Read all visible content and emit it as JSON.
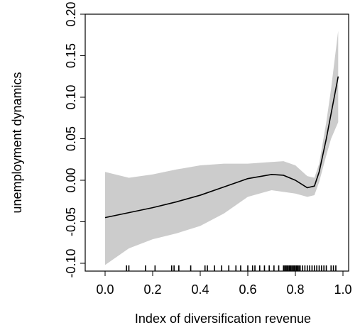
{
  "chart_data": {
    "type": "line",
    "title": "",
    "xlabel": "Index of diversification revenue",
    "ylabel": "unemployment dynamics",
    "xlim": [
      0.0,
      1.0
    ],
    "ylim": [
      -0.1,
      0.2
    ],
    "x_ticks": [
      0.0,
      0.2,
      0.4,
      0.6,
      0.8,
      1.0
    ],
    "x_tick_labels": [
      "0.0",
      "0.2",
      "0.4",
      "0.6",
      "0.8",
      "1.0"
    ],
    "y_ticks": [
      -0.1,
      -0.05,
      0.0,
      0.05,
      0.1,
      0.15,
      0.2
    ],
    "y_tick_labels": [
      "-0.10",
      "-0.05",
      "0.00",
      "0.05",
      "0.10",
      "0.15",
      "0.20"
    ],
    "grid": false,
    "series": [
      {
        "type": "line",
        "color": "#000000",
        "x": [
          0.0,
          0.1,
          0.2,
          0.3,
          0.4,
          0.5,
          0.6,
          0.7,
          0.75,
          0.8,
          0.85,
          0.88,
          0.9,
          0.93,
          0.95,
          0.98
        ],
        "values": [
          -0.045,
          -0.039,
          -0.033,
          -0.026,
          -0.018,
          -0.008,
          0.002,
          0.007,
          0.006,
          0.0,
          -0.009,
          -0.007,
          0.01,
          0.05,
          0.08,
          0.125
        ]
      },
      {
        "type": "confidence_band",
        "color": "#cccccc",
        "x": [
          0.0,
          0.1,
          0.2,
          0.3,
          0.4,
          0.5,
          0.6,
          0.7,
          0.75,
          0.8,
          0.85,
          0.88,
          0.9,
          0.93,
          0.95,
          0.98
        ],
        "upper": [
          0.01,
          0.003,
          0.007,
          0.013,
          0.018,
          0.02,
          0.02,
          0.022,
          0.023,
          0.018,
          0.005,
          0.003,
          0.02,
          0.07,
          0.11,
          0.18
        ],
        "lower": [
          -0.102,
          -0.082,
          -0.071,
          -0.064,
          -0.055,
          -0.04,
          -0.02,
          -0.012,
          -0.014,
          -0.016,
          -0.02,
          -0.018,
          -0.002,
          0.03,
          0.05,
          0.07
        ]
      }
    ],
    "rug_x": [
      0.09,
      0.1,
      0.17,
      0.21,
      0.28,
      0.29,
      0.31,
      0.36,
      0.42,
      0.43,
      0.46,
      0.49,
      0.52,
      0.55,
      0.57,
      0.6,
      0.62,
      0.63,
      0.65,
      0.67,
      0.69,
      0.71,
      0.73,
      0.75,
      0.755,
      0.76,
      0.765,
      0.77,
      0.775,
      0.78,
      0.785,
      0.79,
      0.795,
      0.8,
      0.805,
      0.81,
      0.815,
      0.82,
      0.83,
      0.84,
      0.85,
      0.86,
      0.87,
      0.88,
      0.89,
      0.9,
      0.91,
      0.92,
      0.93,
      0.95,
      0.96,
      0.97
    ]
  }
}
